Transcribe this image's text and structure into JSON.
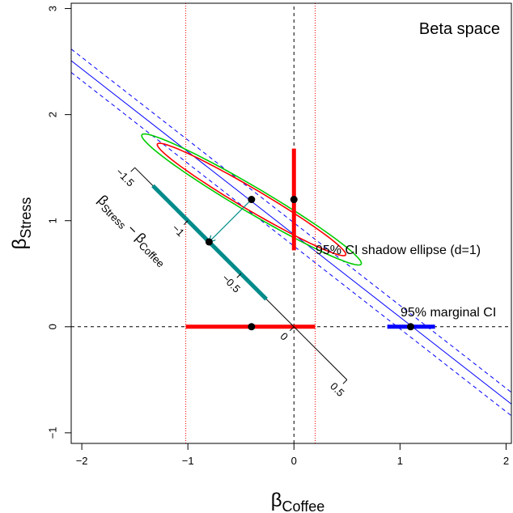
{
  "chart_data": {
    "type": "scatter",
    "title": "Beta space",
    "xlim": [
      -2.1,
      2.05
    ],
    "ylim": [
      -1.1,
      3.05
    ],
    "x_ticks": [
      -2,
      -1,
      0,
      1,
      2
    ],
    "y_ticks": [
      -1,
      0,
      1,
      2,
      3
    ],
    "x_tick_labels": [
      "−2",
      "−1",
      "0",
      "1",
      "2"
    ],
    "y_tick_labels": [
      "−1",
      "0",
      "1",
      "2",
      "3"
    ],
    "xlabel": {
      "main": "β",
      "sub": "Coffee"
    },
    "ylabel": {
      "main": "β",
      "sub": "Stress"
    },
    "grid": false,
    "colors": {
      "red": "#ff0000",
      "green": "#00cc00",
      "blue": "#0000ff",
      "teal": "#008b8b",
      "black": "#000000"
    },
    "points": [
      {
        "x": -0.4,
        "y": 1.2
      },
      {
        "x": 0.0,
        "y": 1.2
      },
      {
        "x": -0.8,
        "y": 0.8
      },
      {
        "x": -0.4,
        "y": 0.0
      },
      {
        "x": 1.1,
        "y": 0.0
      }
    ],
    "shadow_ci": {
      "label": "95% CI shadow ellipse (d=1)",
      "x_interval": [
        -1.02,
        0.2
      ],
      "y_interval": [
        0.72,
        1.68
      ]
    },
    "marginal_ci": {
      "label": "95% marginal CI",
      "x_interval": [
        0.88,
        1.33
      ]
    },
    "joint_ellipse_95": {
      "color": "red",
      "center": [
        -0.4,
        1.2
      ],
      "semi_major": 1.03,
      "semi_minor": 0.1,
      "angle_deg": -30.5
    },
    "joint_ellipse_outer": {
      "color": "green",
      "center": [
        -0.4,
        1.2
      ],
      "semi_major": 1.2,
      "semi_minor": 0.12,
      "angle_deg": -30.5
    },
    "blue_line": {
      "slope": -0.78,
      "intercept": 0.87,
      "band_offset": 0.11
    },
    "difference_axis": {
      "label_main": "β",
      "label_sub1": "Stress",
      "label_mid": " − β",
      "label_sub2": "Coffee",
      "start": [
        -1.5,
        1.5
      ],
      "end": [
        0.5,
        -0.5
      ],
      "ticks": [
        {
          "label": "−1.5",
          "point": [
            -1.5,
            1.5
          ]
        },
        {
          "label": "−1",
          "point": [
            -1.0,
            1.0
          ]
        },
        {
          "label": "−0.5",
          "point": [
            -0.5,
            0.5
          ]
        },
        {
          "label": "0",
          "point": [
            0.0,
            0.0
          ]
        },
        {
          "label": "0.5",
          "point": [
            0.5,
            -0.5
          ]
        }
      ],
      "ci_segment": [
        [
          -1.33,
          1.33
        ],
        [
          -0.26,
          0.26
        ]
      ],
      "projection_from": [
        -0.4,
        1.2
      ],
      "projection_to": [
        -0.8,
        0.8
      ],
      "projected_value": -0.8
    }
  }
}
